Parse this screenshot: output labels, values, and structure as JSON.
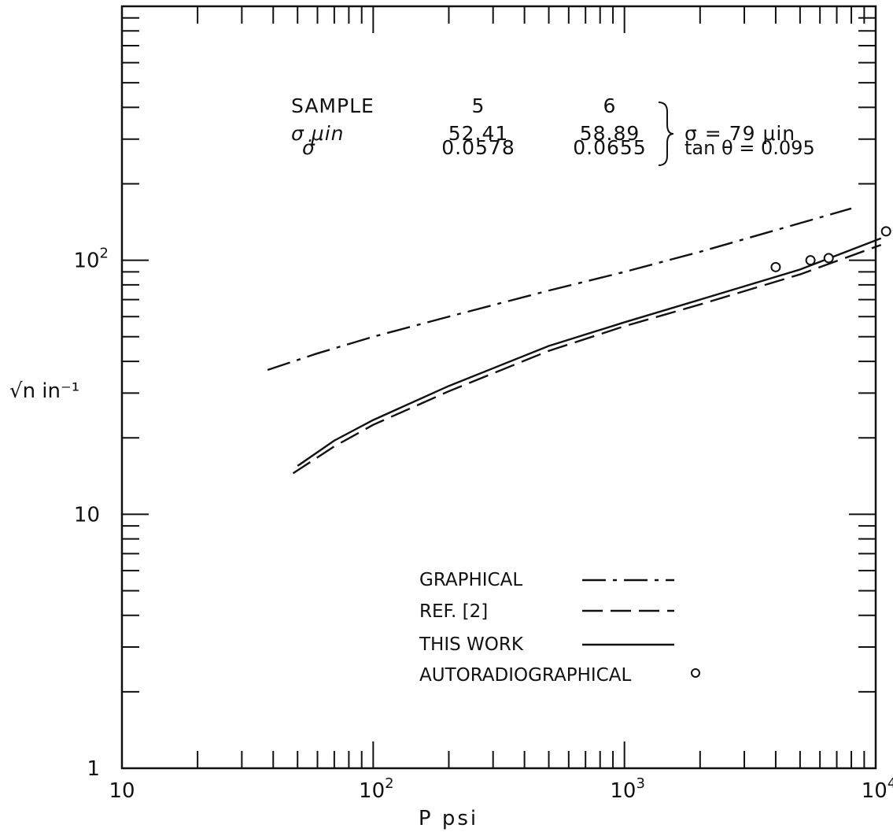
{
  "chart_data": {
    "type": "line",
    "xscale": "log",
    "yscale": "log",
    "xlim": [
      10,
      10000
    ],
    "ylim": [
      1,
      1000
    ],
    "xlabel": "P psi",
    "ylabel": "√n in⁻¹",
    "x_tick_labels": [
      {
        "value": 10,
        "base": "10",
        "exp": ""
      },
      {
        "value": 100,
        "base": "10",
        "exp": "2"
      },
      {
        "value": 1000,
        "base": "10",
        "exp": "3"
      },
      {
        "value": 10000,
        "base": "10",
        "exp": "4"
      }
    ],
    "y_tick_labels": [
      {
        "value": 1,
        "base": "1",
        "exp": ""
      },
      {
        "value": 10,
        "base": "10",
        "exp": ""
      },
      {
        "value": 100,
        "base": "10",
        "exp": "2"
      }
    ],
    "series": [
      {
        "name": "GRAPHICAL",
        "style": "dash-dot",
        "x": [
          38,
          60,
          100,
          200,
          500,
          1000,
          2000,
          5000,
          8000
        ],
        "y": [
          37,
          43,
          50,
          60,
          76,
          90,
          108,
          140,
          160
        ]
      },
      {
        "name": "REF. [2]",
        "style": "dashed",
        "x": [
          48,
          70,
          100,
          200,
          500,
          1000,
          2000,
          5000,
          10500
        ],
        "y": [
          14.5,
          18.5,
          22.5,
          30.5,
          44,
          55,
          67,
          88,
          115
        ]
      },
      {
        "name": "THIS WORK",
        "style": "solid",
        "x": [
          50,
          70,
          100,
          200,
          500,
          1000,
          2000,
          5000,
          10500
        ],
        "y": [
          15.5,
          19.5,
          23.5,
          32,
          46,
          57,
          70,
          92,
          122
        ]
      },
      {
        "name": "AUTORADIOGRAPHICAL",
        "style": "markers",
        "x": [
          4000,
          5500,
          6500,
          11000
        ],
        "y": [
          94,
          100,
          102,
          130
        ]
      }
    ],
    "legend": {
      "placement": "bottom-center",
      "items": [
        {
          "label": "GRAPHICAL",
          "style": "dash-dot"
        },
        {
          "label": "REF. [2]",
          "style": "dashed"
        },
        {
          "label": "THIS WORK",
          "style": "solid"
        },
        {
          "label": "AUTORADIOGRAPHICAL",
          "style": "marker"
        }
      ]
    },
    "annotation_table": {
      "header": [
        "SAMPLE",
        "5",
        "6"
      ],
      "rows": [
        {
          "label": "σ μin",
          "values": [
            "52.41",
            "58.89"
          ]
        },
        {
          "label": "σ̇",
          "values": [
            "0.0578",
            "0.0655"
          ]
        }
      ],
      "combined": [
        "σ = 79 μin",
        "tan θ = 0.095"
      ]
    }
  }
}
